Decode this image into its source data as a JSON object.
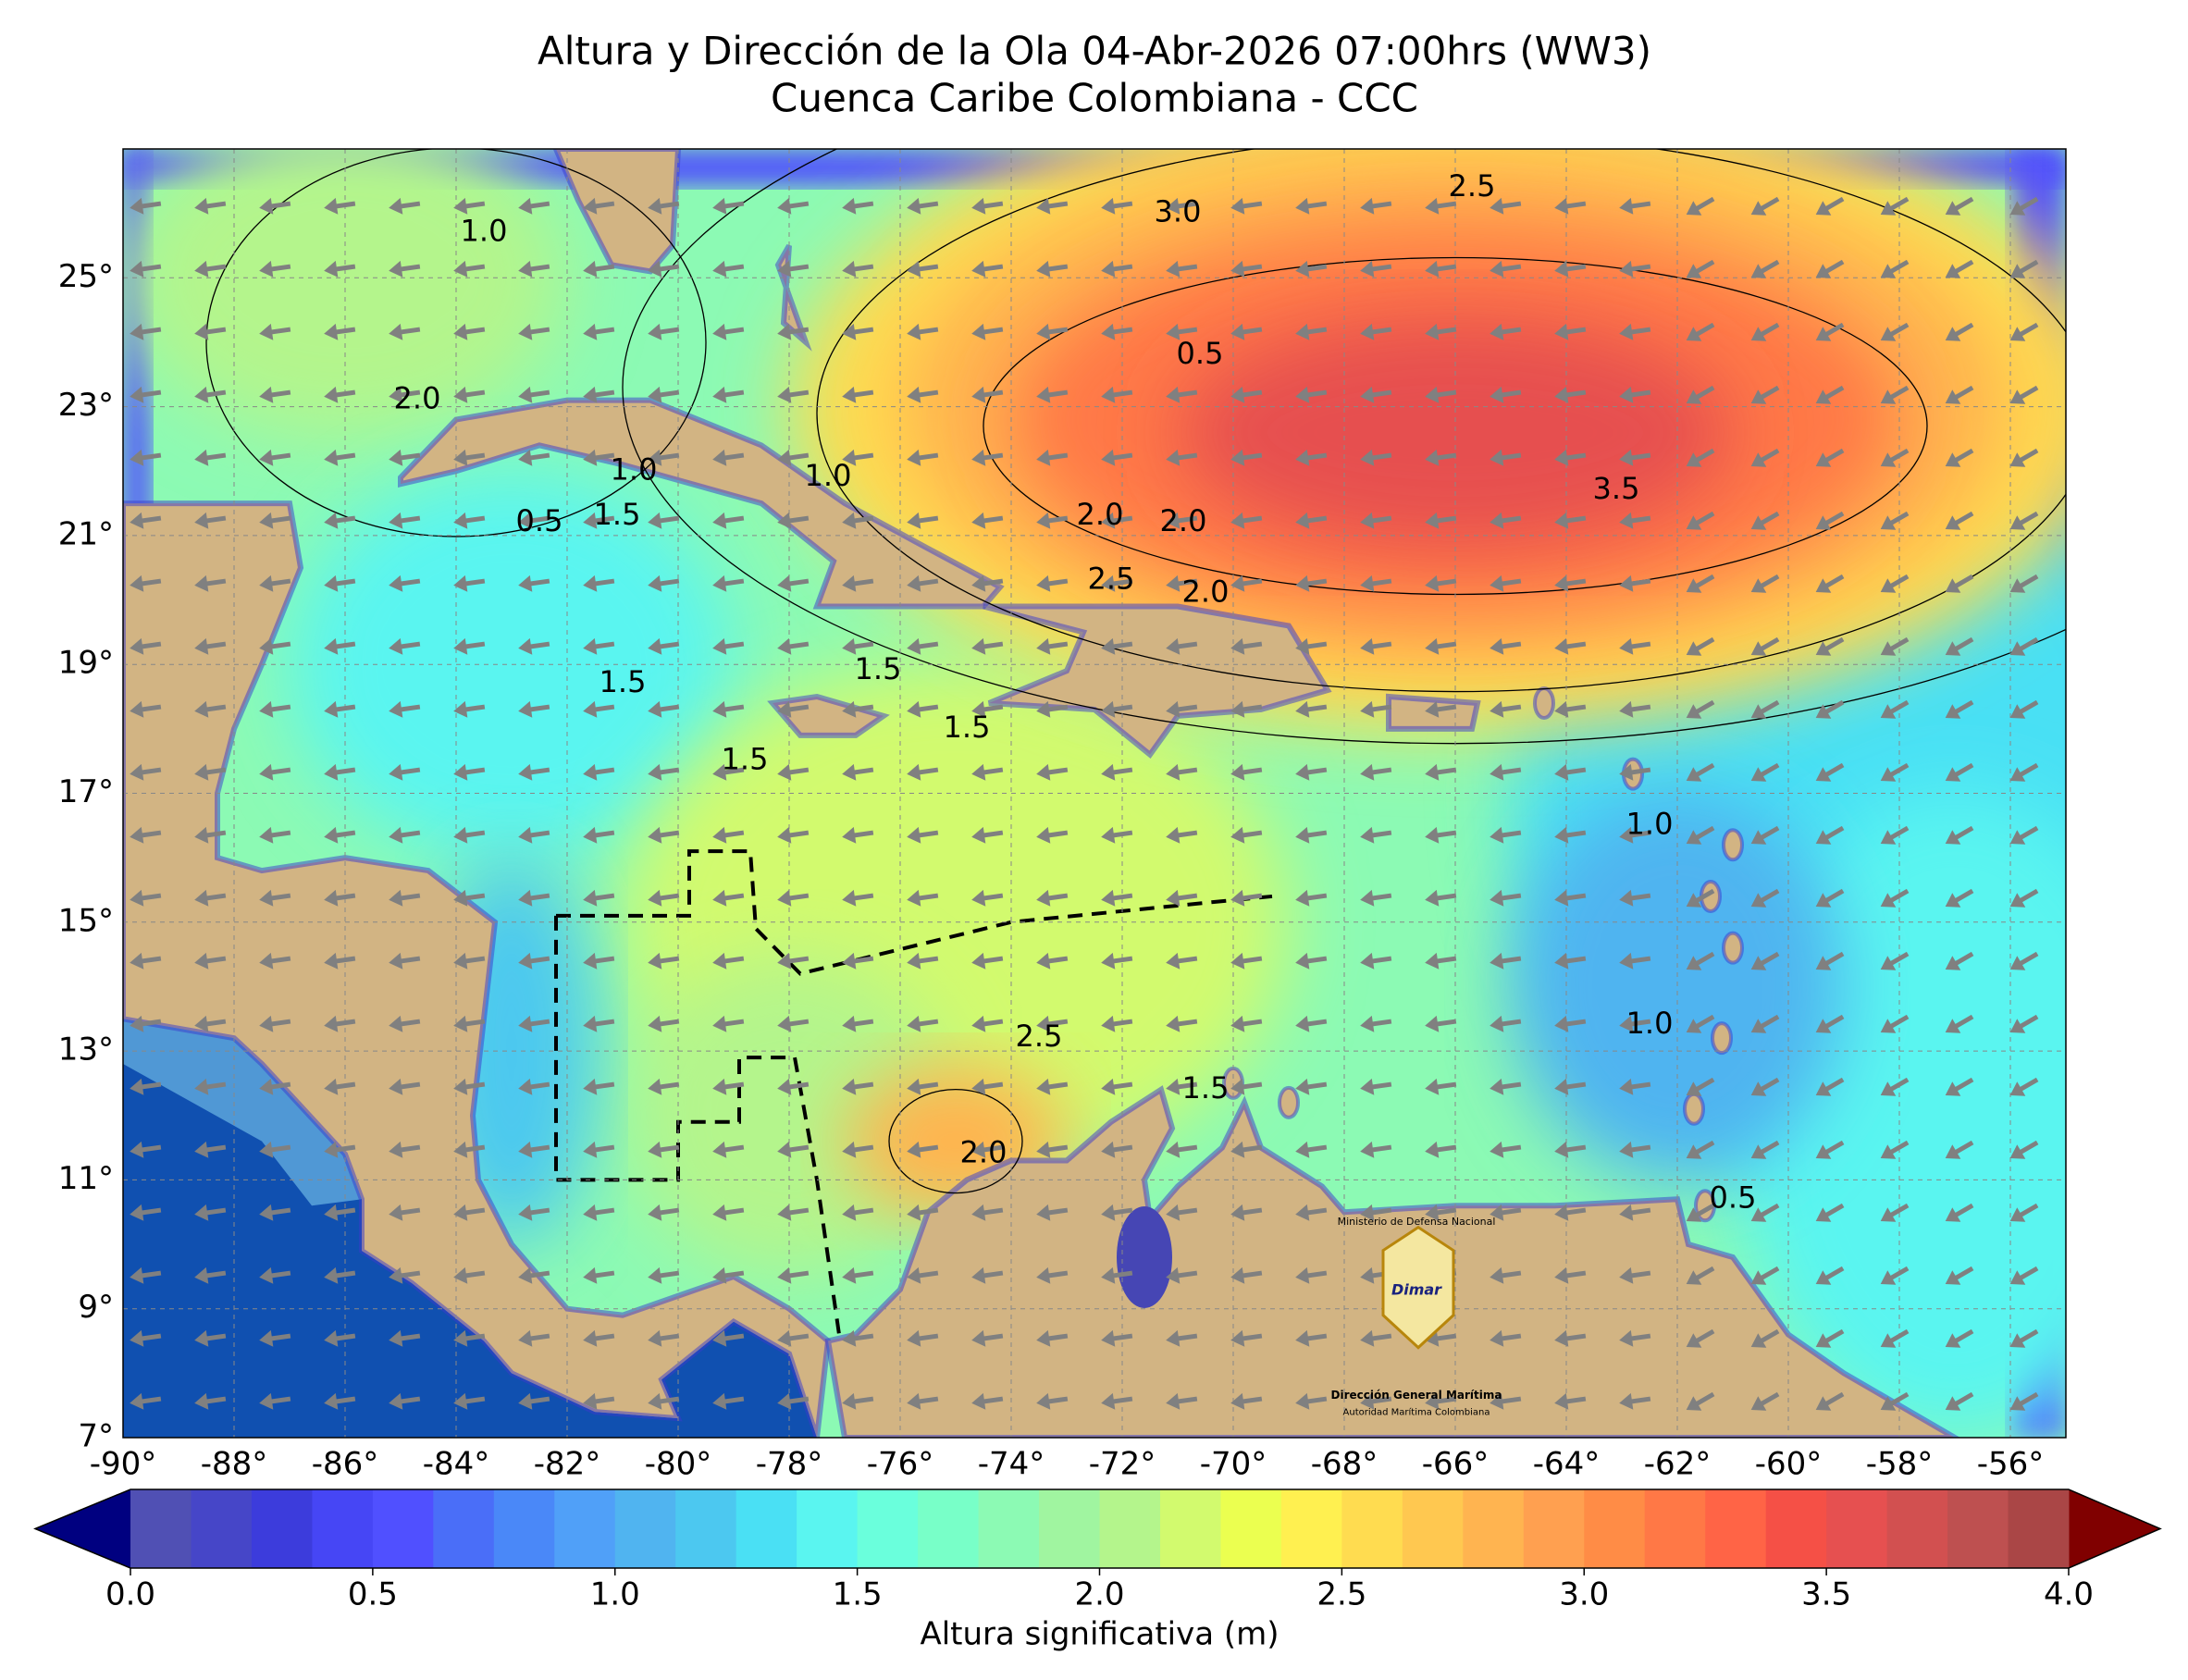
{
  "title": "Altura y Dirección de la Ola 04-Abr-2026 07:00hrs (WW3)",
  "subtitle": "Cuenca Caribe Colombiana - CCC",
  "map": {
    "xlim": [
      -90,
      -55
    ],
    "ylim": [
      7,
      27
    ],
    "xticks": [
      {
        "value": -90,
        "label": "-90°"
      },
      {
        "value": -88,
        "label": "-88°"
      },
      {
        "value": -86,
        "label": "-86°"
      },
      {
        "value": -84,
        "label": "-84°"
      },
      {
        "value": -82,
        "label": "-82°"
      },
      {
        "value": -80,
        "label": "-80°"
      },
      {
        "value": -78,
        "label": "-78°"
      },
      {
        "value": -76,
        "label": "-76°"
      },
      {
        "value": -74,
        "label": "-74°"
      },
      {
        "value": -72,
        "label": "-72°"
      },
      {
        "value": -70,
        "label": "-70°"
      },
      {
        "value": -68,
        "label": "-68°"
      },
      {
        "value": -66,
        "label": "-66°"
      },
      {
        "value": -64,
        "label": "-64°"
      },
      {
        "value": -62,
        "label": "-62°"
      },
      {
        "value": -60,
        "label": "-60°"
      },
      {
        "value": -58,
        "label": "-58°"
      },
      {
        "value": -56,
        "label": "-56°"
      }
    ],
    "yticks": [
      {
        "value": 7,
        "label": "7°"
      },
      {
        "value": 9,
        "label": "9°"
      },
      {
        "value": 11,
        "label": "11°"
      },
      {
        "value": 13,
        "label": "13°"
      },
      {
        "value": 15,
        "label": "15°"
      },
      {
        "value": 17,
        "label": "17°"
      },
      {
        "value": 19,
        "label": "19°"
      },
      {
        "value": 21,
        "label": "21°"
      },
      {
        "value": 23,
        "label": "23°"
      },
      {
        "value": 25,
        "label": "25°"
      }
    ],
    "contour_labels": [
      "1.0",
      "2.0",
      "1.0",
      "0.5",
      "1.5",
      "0.5",
      "1.0",
      "2.0",
      "2.5",
      "2.0",
      "2.0",
      "3.0",
      "2.5",
      "3.5",
      "1.5",
      "1.5",
      "1.5",
      "1.5",
      "2.5",
      "2.0",
      "1.5",
      "1.0",
      "1.0",
      "0.5"
    ]
  },
  "colorbar": {
    "label": "Altura significativa (m)",
    "lim": [
      0,
      4
    ],
    "ticks": [
      {
        "value": 0,
        "label": "0.0"
      },
      {
        "value": 0.5,
        "label": "0.5"
      },
      {
        "value": 1,
        "label": "1.0"
      },
      {
        "value": 1.5,
        "label": "1.5"
      },
      {
        "value": 2,
        "label": "2.0"
      },
      {
        "value": 2.5,
        "label": "2.5"
      },
      {
        "value": 3,
        "label": "3.0"
      },
      {
        "value": 3.5,
        "label": "3.5"
      },
      {
        "value": 4,
        "label": "4.0"
      }
    ],
    "colors": [
      "#5050b4",
      "#4646c8",
      "#3c3cdc",
      "#4646f5",
      "#5050ff",
      "#4a6ef8",
      "#4a88f8",
      "#50a0f8",
      "#50b4f0",
      "#4cc8f0",
      "#4ae0f4",
      "#5af5f0",
      "#6affdc",
      "#78ffc8",
      "#8cfab4",
      "#a0f5a0",
      "#b4f58c",
      "#d2fa6e",
      "#ebff50",
      "#fff050",
      "#ffdc50",
      "#ffc850",
      "#ffb450",
      "#ffa050",
      "#ff8c46",
      "#ff7846",
      "#ff6446",
      "#f55046",
      "#e65050",
      "#d25050",
      "#be5050",
      "#aa4646"
    ],
    "under_color": "#000080",
    "over_color": "#800000"
  },
  "logo": {
    "top": "Ministerio de Defensa Nacional",
    "name": "Dimar",
    "line1": "Dirección General Marítima",
    "line2": "Autoridad Marítima Colombiana"
  }
}
